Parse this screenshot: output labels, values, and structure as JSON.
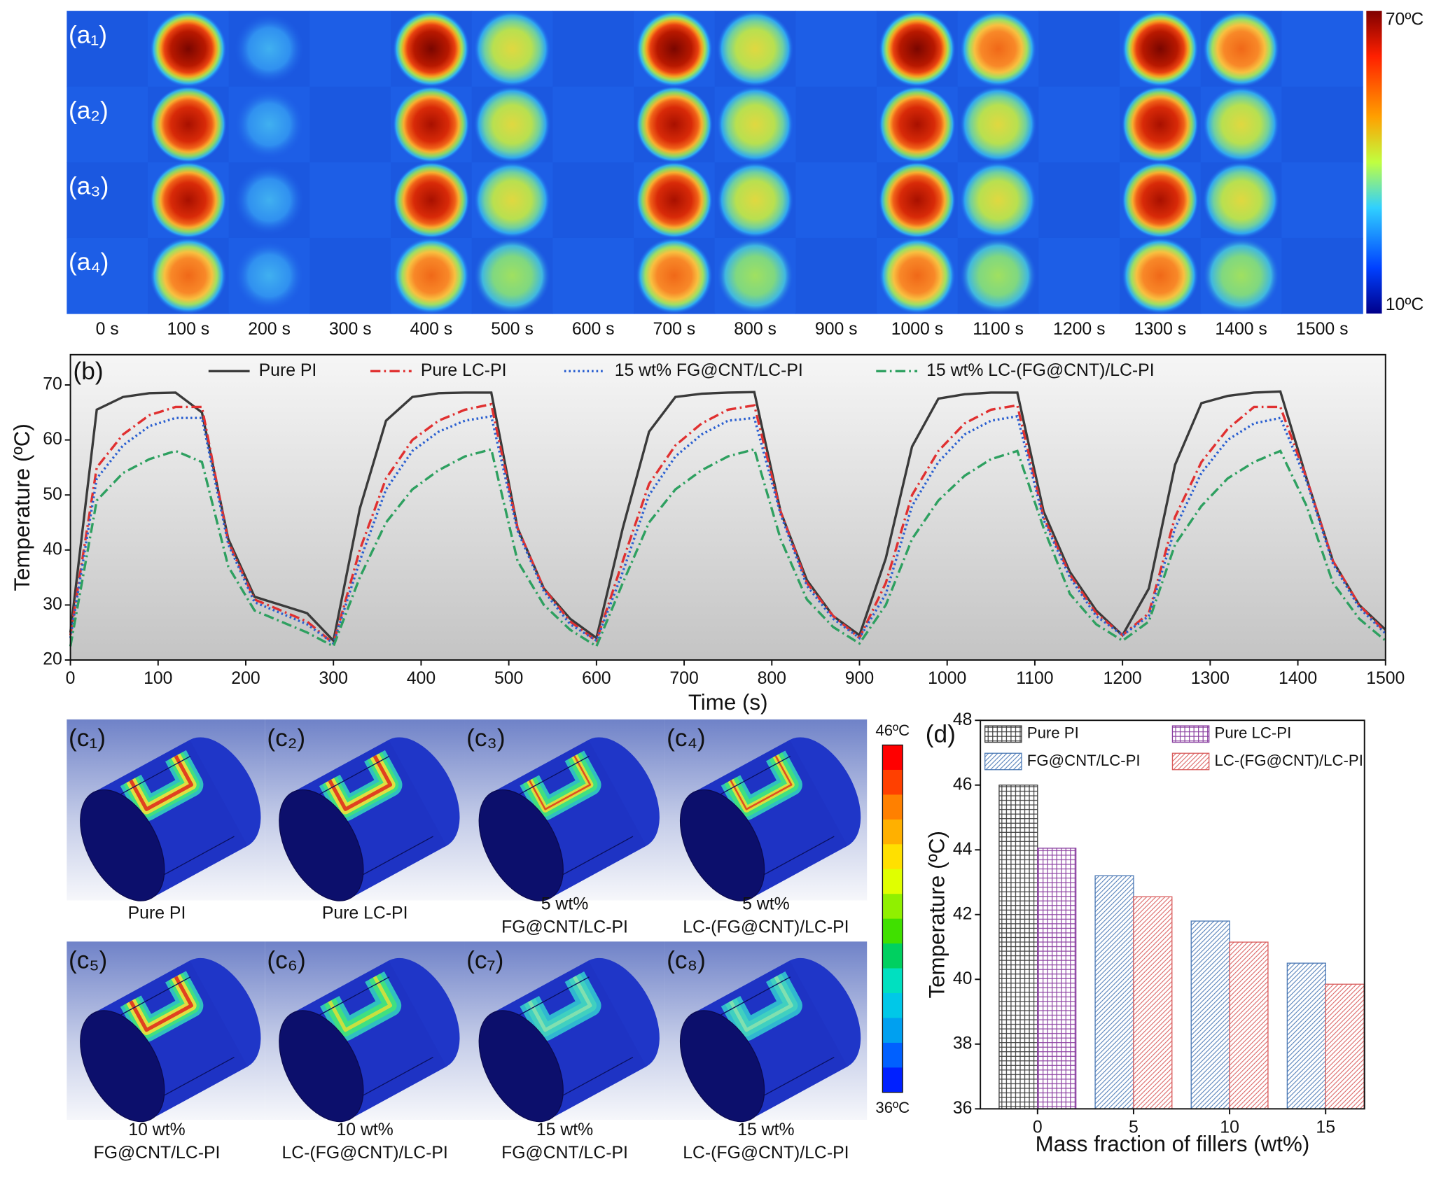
{
  "panel_a": {
    "row_labels": [
      "(a₁)",
      "(a₂)",
      "(a₃)",
      "(a₄)"
    ],
    "times": [
      "0 s",
      "100 s",
      "200 s",
      "300 s",
      "400 s",
      "500 s",
      "600 s",
      "700 s",
      "800 s",
      "900 s",
      "1000 s",
      "1100 s",
      "1200 s",
      "1300 s",
      "1400 s",
      "1500 s"
    ],
    "colorbar": {
      "max_label": "70ºC",
      "min_label": "10ºC"
    }
  },
  "chart_data": [
    {
      "type": "line",
      "label": "(b)",
      "x_label": "Time (s)",
      "y_label": "Temperature (ºC)",
      "x": [
        0,
        30,
        60,
        90,
        120,
        150,
        180,
        210,
        240,
        270,
        300,
        330,
        360,
        390,
        420,
        450,
        480,
        510,
        540,
        570,
        600,
        630,
        660,
        690,
        720,
        750,
        780,
        810,
        840,
        870,
        900,
        930,
        960,
        990,
        1020,
        1050,
        1080,
        1110,
        1140,
        1170,
        1200,
        1230,
        1260,
        1290,
        1320,
        1350,
        1380,
        1410,
        1440,
        1470,
        1500
      ],
      "xlim": [
        0,
        1500
      ],
      "xticks": [
        0,
        100,
        200,
        300,
        400,
        500,
        600,
        700,
        800,
        900,
        1000,
        1100,
        1200,
        1300,
        1400,
        1500
      ],
      "ylim": [
        20,
        75.5
      ],
      "yticks": [
        20,
        30,
        40,
        50,
        60,
        70
      ],
      "series": [
        {
          "name": "Pure PI",
          "color": "#3a3a3a",
          "dash": "solid",
          "values": [
            25,
            65.5,
            67.8,
            68.5,
            68.6,
            65,
            42,
            31.5,
            30,
            28.5,
            23.5,
            47.5,
            63.5,
            67.8,
            68.5,
            68.6,
            68.6,
            44,
            33,
            27.5,
            24,
            44,
            61.5,
            67.8,
            68.4,
            68.6,
            68.7,
            47,
            34.5,
            28,
            24.5,
            38.5,
            58.8,
            67.5,
            68.3,
            68.6,
            68.6,
            47,
            36,
            29,
            24.5,
            33,
            55.5,
            66.7,
            68,
            68.6,
            68.8,
            53,
            38,
            30,
            25.5
          ]
        },
        {
          "name": "Pure LC-PI",
          "color": "#e03030",
          "dash": "dashdot",
          "values": [
            24.5,
            55,
            61,
            64.5,
            66,
            66,
            41.5,
            31,
            29,
            27,
            23,
            40,
            53,
            60,
            63.5,
            65.5,
            66.5,
            44,
            33,
            27,
            23.5,
            38,
            52,
            59,
            63,
            65.5,
            66.3,
            47,
            34,
            28,
            24,
            34,
            50,
            58,
            63,
            65.5,
            66.3,
            46,
            35.5,
            28.5,
            24.5,
            28.5,
            46,
            56,
            62,
            66,
            66,
            53,
            38,
            30,
            25
          ]
        },
        {
          "name": "15 wt% FG@CNT/LC-PI",
          "color": "#2a5fd0",
          "dash": "dot",
          "values": [
            24,
            53,
            59,
            62.5,
            64,
            64,
            41,
            30.5,
            28.5,
            26.5,
            23,
            38,
            51,
            58,
            61.5,
            63.5,
            64.3,
            43.5,
            32.5,
            26.5,
            23.5,
            36,
            50,
            57,
            61,
            63.5,
            64,
            46.5,
            33.5,
            27.5,
            24,
            32,
            48,
            56,
            61,
            63.5,
            64.3,
            45.5,
            35,
            28,
            24.5,
            28,
            44,
            54,
            60,
            63,
            64,
            52.5,
            37.5,
            29.5,
            24.8
          ]
        },
        {
          "name": "15 wt% LC-(FG@CNT)/LC-PI",
          "color": "#2ea060",
          "dash": "dashdot",
          "values": [
            22.5,
            49,
            54,
            56.5,
            58,
            56,
            37,
            29,
            27,
            25,
            22.5,
            35,
            45,
            51,
            54.5,
            57,
            58.3,
            38,
            30,
            25.5,
            22.5,
            34,
            45,
            51,
            54.5,
            57,
            58.3,
            42,
            31,
            26,
            23,
            30,
            42,
            49,
            53.5,
            56.5,
            58,
            44,
            32,
            26.5,
            23.5,
            27,
            41,
            48,
            53,
            56,
            58,
            48,
            34,
            27.5,
            23.5
          ]
        }
      ]
    },
    {
      "type": "bar",
      "label": "(d)",
      "x_label": "Mass fraction of fillers (wt%)",
      "y_label": "Temperature (ºC)",
      "categories": [
        "0",
        "5",
        "10",
        "15"
      ],
      "ylim": [
        36,
        48
      ],
      "yticks": [
        36,
        38,
        40,
        42,
        44,
        46,
        48
      ],
      "series": [
        {
          "name": "Pure PI",
          "color": "#3a3a3a",
          "pattern": "grid",
          "values": [
            46.0,
            null,
            null,
            null
          ]
        },
        {
          "name": "Pure LC-PI",
          "color": "#8a3fa0",
          "pattern": "grid",
          "values": [
            44.05,
            null,
            null,
            null
          ]
        },
        {
          "name": "FG@CNT/LC-PI",
          "color": "#4a78b5",
          "pattern": "diagonal",
          "values": [
            null,
            43.2,
            41.8,
            40.5
          ]
        },
        {
          "name": "LC-(FG@CNT)/LC-PI",
          "color": "#d95b5b",
          "pattern": "diagonal",
          "values": [
            null,
            42.55,
            41.15,
            39.85
          ]
        }
      ]
    }
  ],
  "panel_c": {
    "items": [
      {
        "label": "(c₁)",
        "caption": [
          "Pure PI"
        ]
      },
      {
        "label": "(c₂)",
        "caption": [
          "Pure LC-PI"
        ]
      },
      {
        "label": "(c₃)",
        "caption": [
          "5 wt%",
          "FG@CNT/LC-PI"
        ]
      },
      {
        "label": "(c₄)",
        "caption": [
          "5 wt%",
          "LC-(FG@CNT)/LC-PI"
        ]
      },
      {
        "label": "(c₅)",
        "caption": [
          "10 wt%",
          "FG@CNT/LC-PI"
        ]
      },
      {
        "label": "(c₆)",
        "caption": [
          "10 wt%",
          "LC-(FG@CNT)/LC-PI"
        ]
      },
      {
        "label": "(c₇)",
        "caption": [
          "15 wt%",
          "FG@CNT/LC-PI"
        ]
      },
      {
        "label": "(c₈)",
        "caption": [
          "15 wt%",
          "LC-(FG@CNT)/LC-PI"
        ]
      }
    ],
    "colorbar": {
      "max_label": "46ºC",
      "min_label": "36ºC"
    }
  }
}
